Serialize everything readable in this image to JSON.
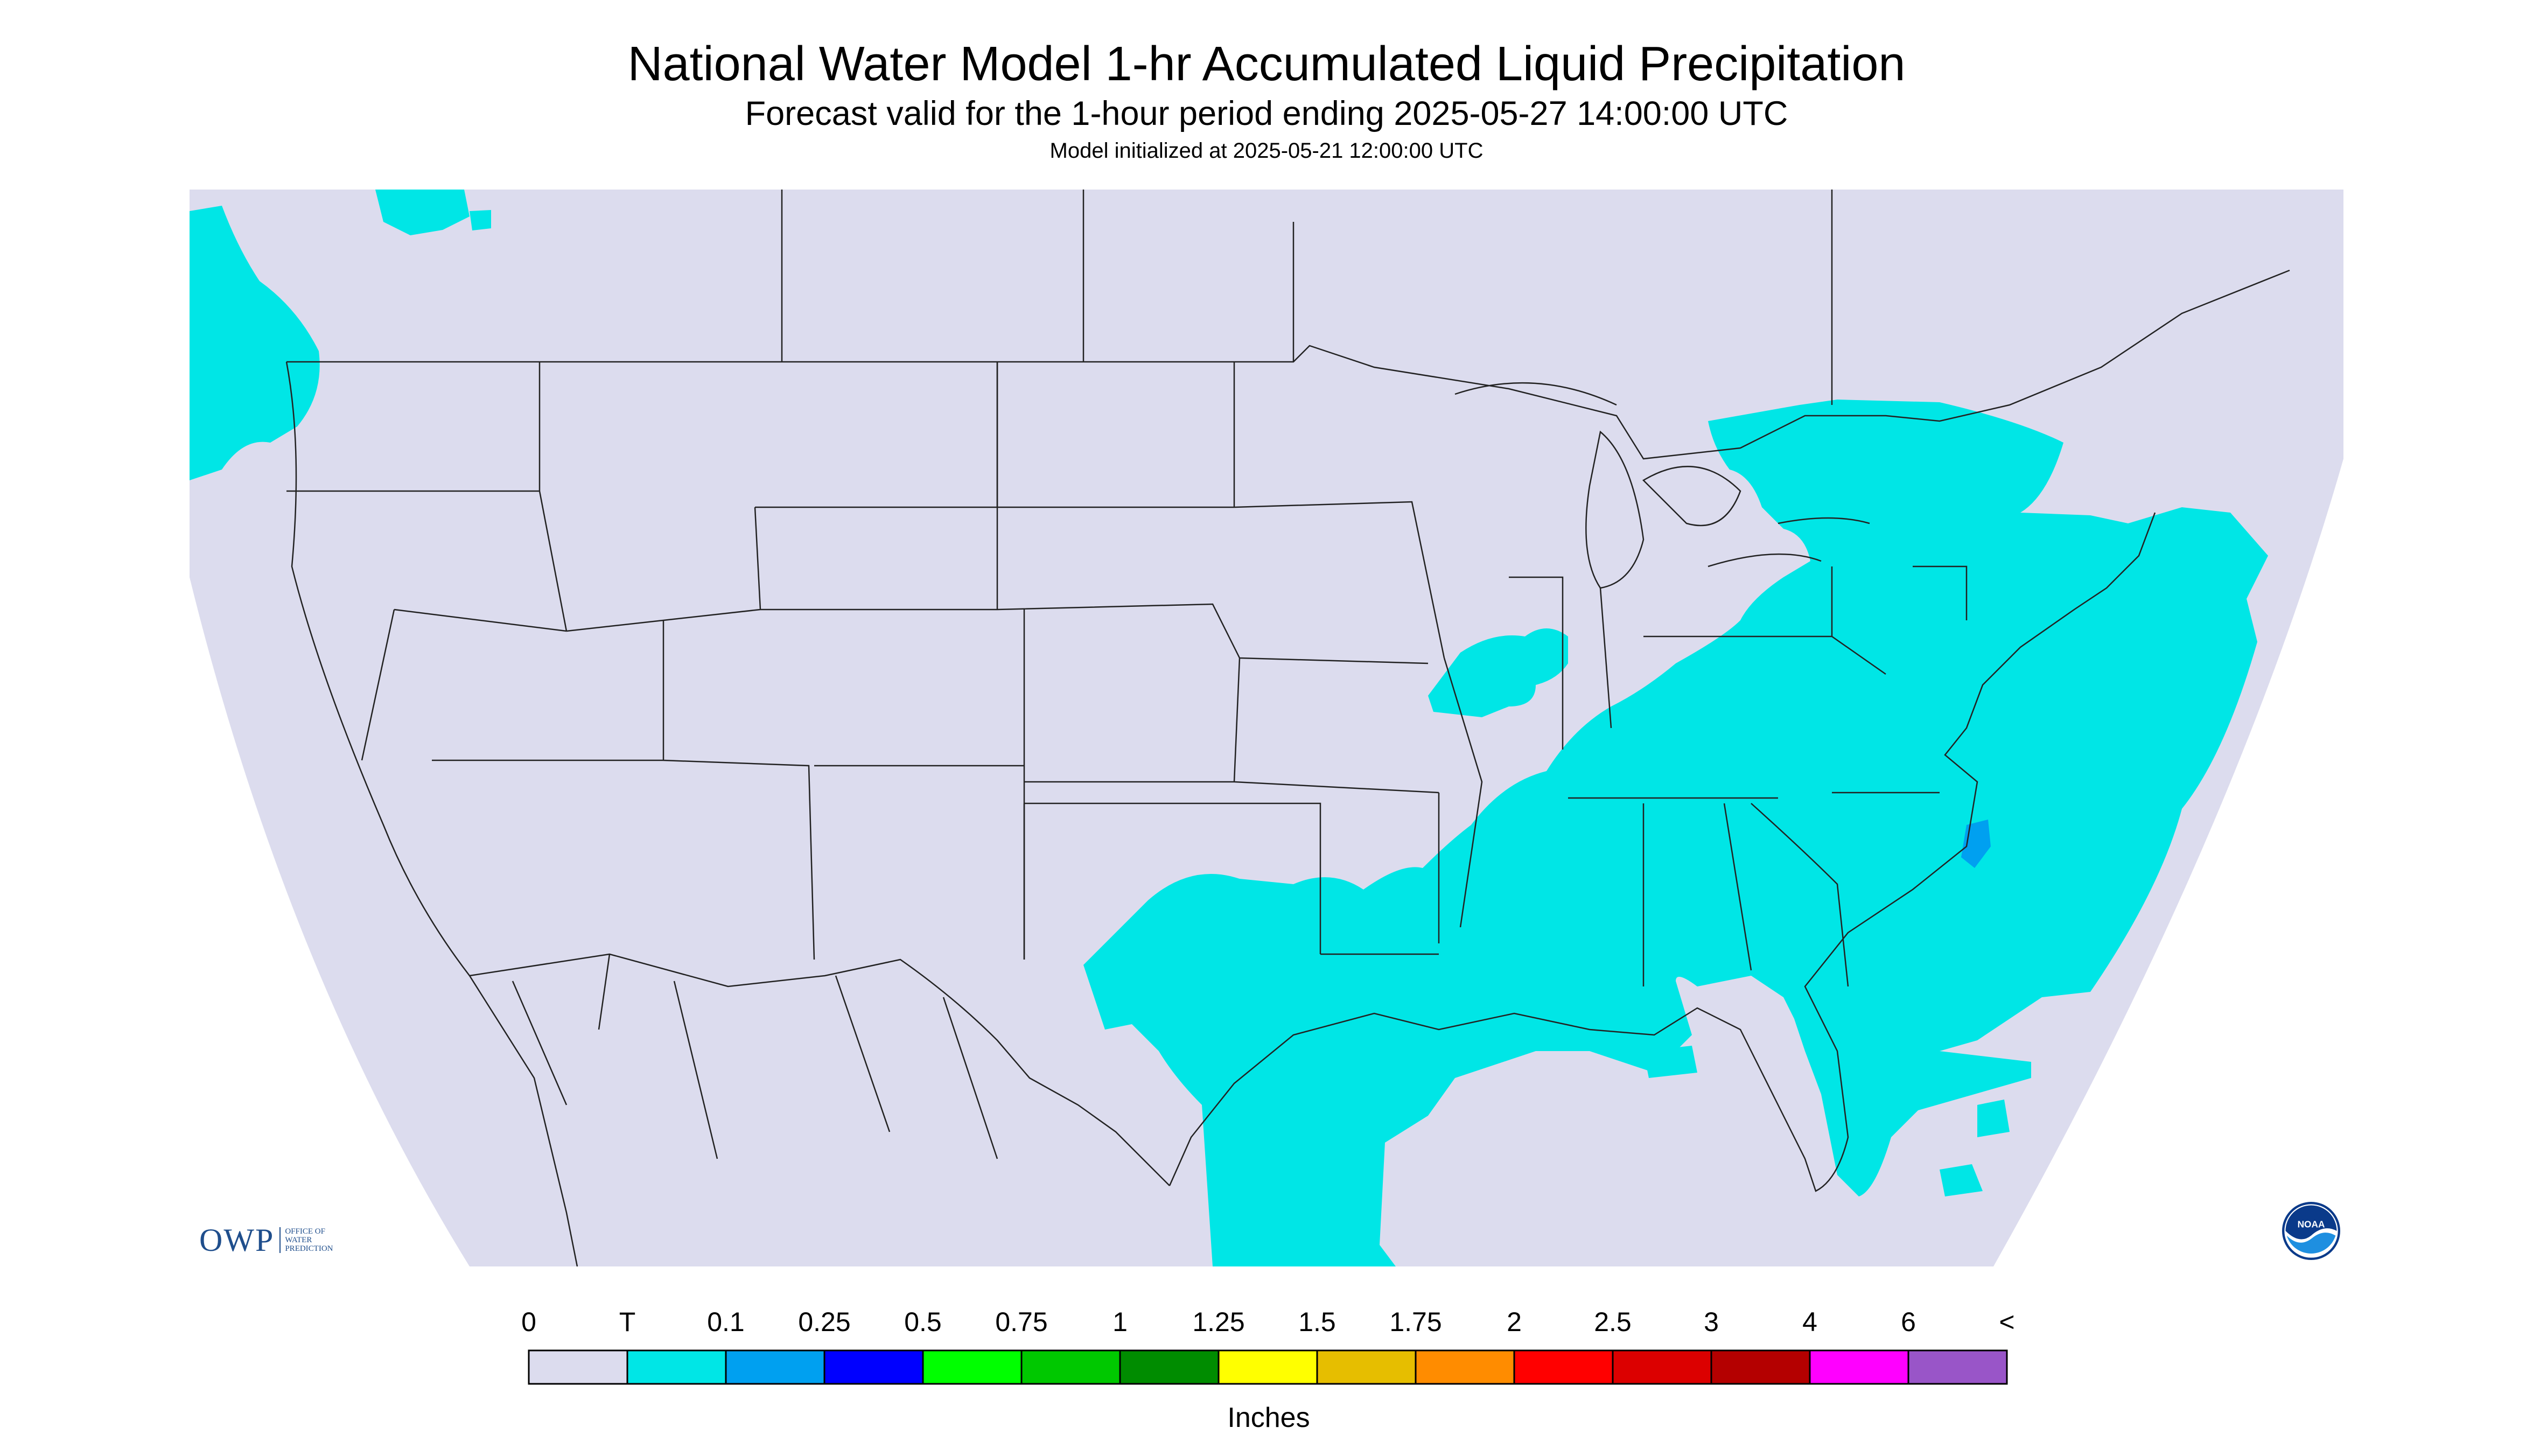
{
  "header": {
    "title": "National Water Model 1-hr Accumulated Liquid Precipitation",
    "subtitle": "Forecast valid for the 1-hour period ending 2025-05-27 14:00:00 UTC",
    "init": "Model initialized at 2025-05-21 12:00:00 UTC"
  },
  "colors": {
    "background_domain": "#dcdcee",
    "precip_trace": "#00e6e6",
    "precip_01": "#00a0f0",
    "borders": "#222222"
  },
  "map": {
    "region": "Continental United States",
    "precip_areas": [
      {
        "name": "Pacific Northwest",
        "category": "T"
      },
      {
        "name": "Northeast and Mid-Atlantic",
        "category": "T"
      },
      {
        "name": "Southeast and Gulf Coast",
        "category": "T"
      },
      {
        "name": "Texas Gulf Coast",
        "category": "T"
      },
      {
        "name": "Outer Banks NC",
        "category": "0.1"
      }
    ]
  },
  "legend": {
    "labels": [
      "0",
      "T",
      "0.1",
      "0.25",
      "0.5",
      "0.75",
      "1",
      "1.25",
      "1.5",
      "1.75",
      "2",
      "2.5",
      "3",
      "4",
      "6",
      "<"
    ],
    "colors": [
      "#dcdcee",
      "#00e6e6",
      "#00a0f0",
      "#0000ff",
      "#00ff00",
      "#00c800",
      "#008c00",
      "#ffff00",
      "#e6be00",
      "#ff8c00",
      "#ff0000",
      "#dc0000",
      "#b40000",
      "#ff00ff",
      "#9955c8"
    ],
    "unit_label": "Inches"
  },
  "logos": {
    "owp_text": "OWP",
    "owp_sub": [
      "OFFICE OF",
      "WATER",
      "PREDICTION"
    ],
    "noaa_text": "NOAA"
  }
}
